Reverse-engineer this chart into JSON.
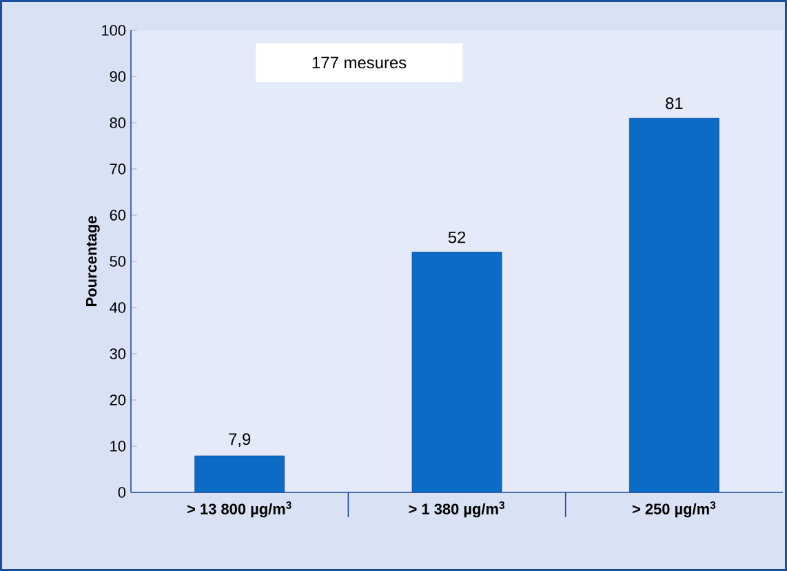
{
  "chart_data": {
    "type": "bar",
    "ylabel": "Pourcentage",
    "categories": [
      "> 13 800 µg/m$^{3}$",
      "> 1 380 µg/m$^{3}$",
      "> 250 µg/m$^{3}$"
    ],
    "values": [
      7.9,
      52,
      81
    ],
    "value_labels": [
      "7,9",
      "52",
      "81"
    ],
    "color": "#0a6cc4",
    "ylim": [
      0,
      100
    ],
    "yticks": [
      0,
      10,
      20,
      30,
      40,
      50,
      60,
      70,
      80,
      90,
      100
    ],
    "annotations": [
      "177 mesures"
    ]
  }
}
